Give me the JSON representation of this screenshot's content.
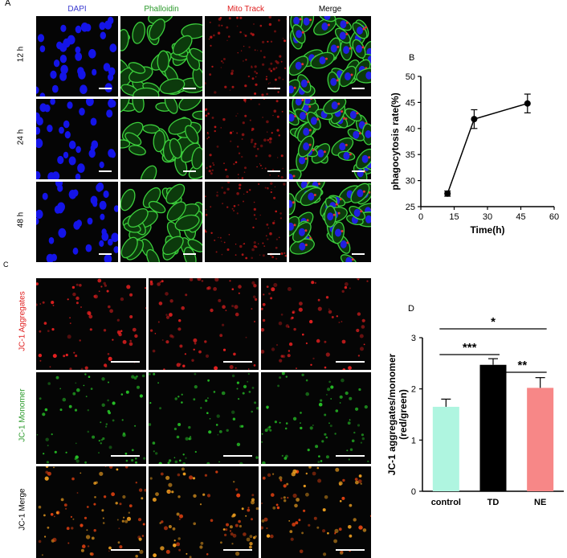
{
  "figure": {
    "panel_a": {
      "letter": "A",
      "columns": [
        {
          "label": "DAPI",
          "color": "#3a3ad0"
        },
        {
          "label": "Phalloidin",
          "color": "#2a9a2a"
        },
        {
          "label": "Mito Track",
          "color": "#e02020"
        },
        {
          "label": "Merge",
          "color": "#000000"
        }
      ],
      "rows": [
        "12 h",
        "24 h",
        "48 h"
      ]
    },
    "panel_b": {
      "letter": "B"
    },
    "panel_c": {
      "letter": "C",
      "rows": [
        {
          "label": "JC-1 Aggregates",
          "color": "#e02020"
        },
        {
          "label": "JC-1 Monomer",
          "color": "#2a9a2a"
        },
        {
          "label": "JC-1 Merge",
          "color": "#000000"
        }
      ]
    },
    "panel_d": {
      "letter": "D"
    }
  },
  "chart_data": [
    {
      "type": "line",
      "x": [
        12,
        24,
        48
      ],
      "y": [
        27.5,
        41.8,
        44.8
      ],
      "error": [
        0.5,
        1.8,
        1.8
      ],
      "xlabel": "Time(h)",
      "ylabel": "phagocytosis rate(%)",
      "xlim": [
        0,
        60
      ],
      "ylim": [
        25,
        50
      ],
      "xticks": [
        0,
        15,
        30,
        45,
        60
      ],
      "yticks": [
        25,
        30,
        35,
        40,
        45,
        50
      ],
      "grid": false
    },
    {
      "type": "bar",
      "categories": [
        "control",
        "TD",
        "NE"
      ],
      "values": [
        1.65,
        2.47,
        2.02
      ],
      "error": [
        0.15,
        0.12,
        0.2
      ],
      "colors": [
        "#aff5e0",
        "#000000",
        "#f78787"
      ],
      "ylabel": "JC-1 aggregates/monomer\n(red/green)",
      "ylim": [
        0,
        3
      ],
      "yticks": [
        0,
        1,
        2,
        3
      ],
      "significance": [
        {
          "from": "control",
          "to": "NE",
          "label": "*"
        },
        {
          "from": "control",
          "to": "TD",
          "label": "***"
        },
        {
          "from": "TD",
          "to": "NE",
          "label": "**"
        }
      ],
      "grid": false
    }
  ]
}
